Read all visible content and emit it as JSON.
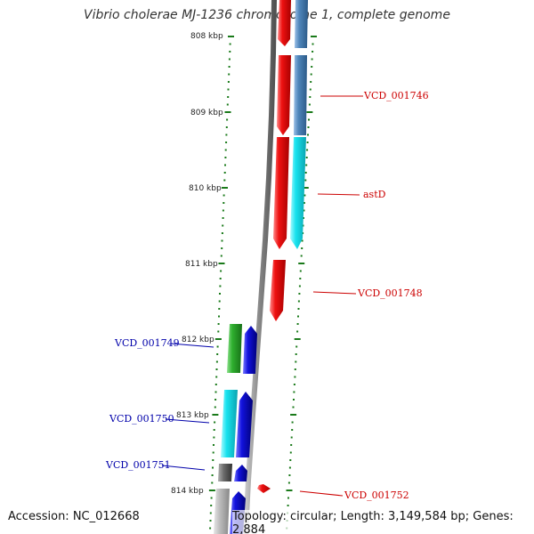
{
  "title": "Vibrio cholerae MJ-1236 chromosome 1, complete genome",
  "footer": {
    "accession": "Accession: NC_012668",
    "summary": "Topology: circular; Length: 3,149,584 bp; Genes: 2,884"
  },
  "colors": {
    "backbone": "#8c8c8c",
    "tick": "#1a7a1a",
    "gene_red": "#ee1111",
    "gene_steelblue": "#4f86bb",
    "gene_cyan": "#18e2ee",
    "gene_green": "#2fb02f",
    "gene_blue": "#1212dd",
    "gene_grey": "#6a6a6a",
    "gene_lightgrey": "#bbbbbb",
    "label_red": "#cc0000",
    "label_blue": "#0000aa"
  },
  "scale_labels": [
    "808 kbp",
    "809 kbp",
    "810 kbp",
    "811 kbp",
    "812 kbp",
    "813 kbp",
    "814 kbp"
  ],
  "gene_labels_right": [
    "VCD_001746",
    "astD",
    "VCD_001748",
    "VCD_001752"
  ],
  "gene_labels_left": [
    "VCD_001749",
    "VCD_001750",
    "VCD_001751"
  ]
}
